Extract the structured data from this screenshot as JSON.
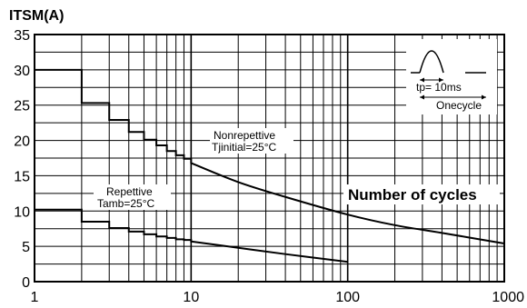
{
  "chart_data": {
    "type": "line",
    "ylabel": "ITSM(A)",
    "xlabel": "Number of cycles",
    "xscale": "log",
    "xlim": [
      1,
      1000
    ],
    "ylim": [
      0,
      35
    ],
    "grid": true,
    "x_ticks": [
      "1",
      "10",
      "100",
      "1000"
    ],
    "y_ticks": [
      "0",
      "5",
      "10",
      "15",
      "20",
      "25",
      "30",
      "35"
    ],
    "series": [
      {
        "name": "Nonrepettive\nTjinitial=25°C",
        "style": "step-then-curve",
        "x": [
          1,
          2,
          2,
          3,
          3,
          4,
          4,
          5,
          5,
          6,
          6,
          7,
          7,
          8,
          8,
          9,
          9,
          10,
          10,
          20,
          40,
          100,
          200,
          400,
          1000
        ],
        "y": [
          30,
          30,
          25.3,
          25.3,
          22.9,
          22.9,
          21.2,
          21.2,
          20.1,
          20.1,
          19.3,
          19.3,
          18.5,
          18.5,
          17.9,
          17.9,
          17.4,
          17.4,
          16.8,
          14.1,
          12.0,
          9.5,
          8.0,
          6.9,
          5.4
        ]
      },
      {
        "name": "Repettive\nTamb=25°C",
        "style": "step-then-curve",
        "x": [
          1,
          2,
          2,
          3,
          3,
          4,
          4,
          5,
          5,
          6,
          6,
          7,
          7,
          8,
          8,
          9,
          9,
          10,
          10,
          20,
          40,
          100
        ],
        "y": [
          10.2,
          10.2,
          8.5,
          8.5,
          7.6,
          7.6,
          7.1,
          7.1,
          6.7,
          6.7,
          6.4,
          6.4,
          6.2,
          6.2,
          6.0,
          6.0,
          5.9,
          5.9,
          5.7,
          4.8,
          3.9,
          2.8
        ]
      }
    ],
    "annotations": {
      "nonrep_line1": "Nonrepettive",
      "nonrep_line2": "Tjinitial=25°C",
      "rep_line1": "Repettive",
      "rep_line2": "Tamb=25°C",
      "tp_label": "tp= 10ms",
      "onecycle_label": "Onecycle"
    }
  }
}
